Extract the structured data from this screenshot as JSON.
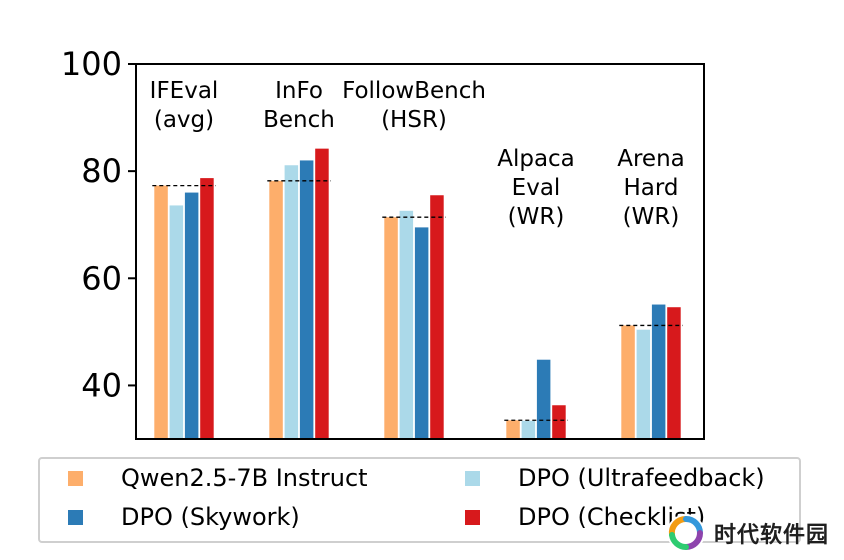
{
  "chart_data": {
    "type": "bar",
    "ylim": [
      30,
      100
    ],
    "yticks": [
      40,
      60,
      80,
      100
    ],
    "grid": false,
    "legend_placement": "bottom",
    "categories": [
      {
        "label_lines": [
          "IFEval",
          "(avg)"
        ],
        "baseline": 77.3
      },
      {
        "label_lines": [
          "InFo",
          "Bench"
        ],
        "baseline": 78.2
      },
      {
        "label_lines": [
          "FollowBench",
          "(HSR)"
        ],
        "baseline": 71.4
      },
      {
        "label_lines": [
          "Alpaca",
          "Eval",
          "(WR)"
        ],
        "baseline": 33.5
      },
      {
        "label_lines": [
          "Arena",
          "Hard",
          "(WR)"
        ],
        "baseline": 51.2
      }
    ],
    "series": [
      {
        "name": "Qwen2.5-7B Instruct",
        "color": "#fdae6b",
        "values": [
          77.3,
          78.2,
          71.4,
          33.5,
          51.2
        ]
      },
      {
        "name": "DPO (Ultrafeedback)",
        "color": "#abd9e9",
        "values": [
          73.6,
          81.1,
          72.6,
          33.4,
          50.4
        ]
      },
      {
        "name": "DPO (Skywork)",
        "color": "#2c7bb6",
        "values": [
          76.0,
          82.0,
          69.5,
          44.8,
          55.1
        ]
      },
      {
        "name": "DPO (Checklist)",
        "color": "#d7191c",
        "values": [
          78.7,
          84.2,
          75.5,
          36.3,
          54.6
        ]
      }
    ]
  },
  "legend": {
    "items": [
      {
        "label": "Qwen2.5-7B Instruct",
        "color": "#fdae6b"
      },
      {
        "label": "DPO (Ultrafeedback)",
        "color": "#abd9e9"
      },
      {
        "label": "DPO (Skywork)",
        "color": "#2c7bb6"
      },
      {
        "label": "DPO (Checklist)",
        "color": "#d7191c"
      }
    ]
  },
  "watermark": {
    "text": "时代软件园",
    "logo_colors": [
      "#f39c12",
      "#3498db",
      "#8e44ad",
      "#2ecc71"
    ]
  }
}
